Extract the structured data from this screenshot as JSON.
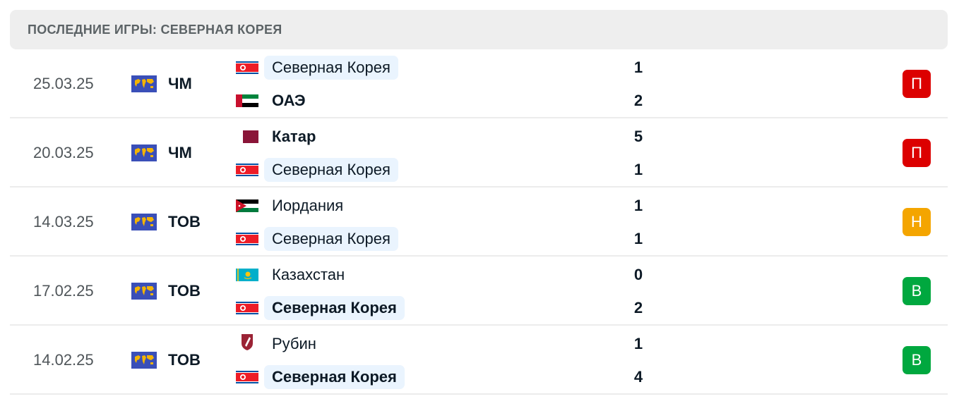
{
  "header": {
    "title": "ПОСЛЕДНИЕ ИГРЫ: СЕВЕРНАЯ КОРЕЯ"
  },
  "colors": {
    "loss": "#dc0000",
    "draw": "#f4a500",
    "win": "#00a83f",
    "highlight": "#eaf4fe"
  },
  "matches": [
    {
      "date": "25.03.25",
      "competition": "ЧМ",
      "competition_icon": "world-map-icon",
      "home": {
        "name": "Северная Корея",
        "flag": "north-korea",
        "score": "1",
        "highlight": true,
        "bold": false
      },
      "away": {
        "name": "ОАЭ",
        "flag": "uae",
        "score": "2",
        "highlight": false,
        "bold": true
      },
      "result": "П",
      "result_type": "loss"
    },
    {
      "date": "20.03.25",
      "competition": "ЧМ",
      "competition_icon": "world-map-icon",
      "home": {
        "name": "Катар",
        "flag": "qatar",
        "score": "5",
        "highlight": false,
        "bold": true
      },
      "away": {
        "name": "Северная Корея",
        "flag": "north-korea",
        "score": "1",
        "highlight": true,
        "bold": false
      },
      "result": "П",
      "result_type": "loss"
    },
    {
      "date": "14.03.25",
      "competition": "ТОВ",
      "competition_icon": "world-map-icon",
      "home": {
        "name": "Иордания",
        "flag": "jordan",
        "score": "1",
        "highlight": false,
        "bold": false
      },
      "away": {
        "name": "Северная Корея",
        "flag": "north-korea",
        "score": "1",
        "highlight": true,
        "bold": false
      },
      "result": "Н",
      "result_type": "draw"
    },
    {
      "date": "17.02.25",
      "competition": "ТОВ",
      "competition_icon": "world-map-icon",
      "home": {
        "name": "Казахстан",
        "flag": "kazakhstan",
        "score": "0",
        "highlight": false,
        "bold": false
      },
      "away": {
        "name": "Северная Корея",
        "flag": "north-korea",
        "score": "2",
        "highlight": true,
        "bold": true
      },
      "result": "В",
      "result_type": "win"
    },
    {
      "date": "14.02.25",
      "competition": "ТОВ",
      "competition_icon": "world-map-icon",
      "home": {
        "name": "Рубин",
        "flag": "rubin-crest",
        "score": "1",
        "highlight": false,
        "bold": false
      },
      "away": {
        "name": "Северная Корея",
        "flag": "north-korea",
        "score": "4",
        "highlight": true,
        "bold": true
      },
      "result": "В",
      "result_type": "win"
    }
  ]
}
